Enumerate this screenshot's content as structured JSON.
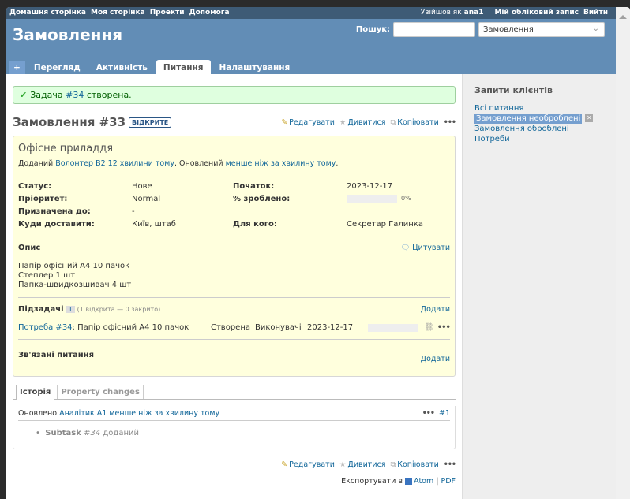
{
  "top_menu": {
    "left": [
      "Домашня сторінка",
      "Моя сторінка",
      "Проекти",
      "Допомога"
    ],
    "logged_as": "Увійшов як",
    "user": "ana1",
    "account": "Мій обліковий запис",
    "logout": "Вийти"
  },
  "header": {
    "title": "Замовлення",
    "search_label": "Пошук:",
    "search_value": "",
    "scope": "Замовлення"
  },
  "tabs": [
    "+",
    "Перегляд",
    "Активність",
    "Питання",
    "Налаштування"
  ],
  "flash": {
    "prefix": "Задача",
    "link": "#34",
    "suffix": "створена."
  },
  "issue": {
    "title": "Замовлення #33",
    "status_badge": "ВІДКРИТЕ",
    "actions": {
      "edit": "Редагувати",
      "watch": "Дивитися",
      "copy": "Копіювати",
      "more": "•••"
    },
    "subject": "Офісне приладдя",
    "author": {
      "added": "Доданий",
      "author": "Волонтер В2",
      "ago": "12 хвилини тому",
      "updated_prefix": ". Оновлений",
      "updated": "менше ніж за хвилину тому",
      "end": "."
    },
    "attributes": [
      [
        "Статус:",
        "Нове",
        "Початок:",
        "2023-12-17"
      ],
      [
        "Пріоритет:",
        "Normal",
        "% зроблено:",
        ""
      ],
      [
        "Призначена до:",
        "-",
        "",
        ""
      ],
      [
        "Куди доставити:",
        "Київ, штаб",
        "Для кого:",
        "Секретар Галинка"
      ]
    ],
    "done_percent": 0,
    "done_label": "0%",
    "description_label": "Опис",
    "quote": "Цитувати",
    "description": [
      "Папір офісний А4 10 пачок",
      "Степлер 1 шт",
      "Папка-швидкозшивач 4 шт"
    ],
    "subtasks_label": "Підзадачі",
    "subtasks_count": "1",
    "subtasks_summary": "(1 відкрита — 0 закрито)",
    "add": "Додати",
    "subtask": {
      "tracker": "Потреба #34",
      "subject": ": Папір офісний А4 10 пачок",
      "status": "Створена",
      "assignee": "Виконувачі",
      "date": "2023-12-17",
      "progress": 0
    },
    "related_label": "Зв'язані питання"
  },
  "history": {
    "tabs": [
      "Історія",
      "Property changes"
    ],
    "header_prefix": "Оновлено",
    "user": "Аналітик А1",
    "ago": "менше ніж за хвилину тому",
    "num": "#1",
    "detail_label": "Subtask",
    "detail_link": "#34",
    "detail_suffix": "доданий"
  },
  "export": {
    "label": "Експортувати в",
    "atom": "Atom",
    "pdf": "PDF"
  },
  "sidebar": {
    "title": "Запити клієнтів",
    "items": [
      "Всі питання",
      "Замовлення необроблені",
      "Замовлення оброблені",
      "Потреби"
    ]
  }
}
